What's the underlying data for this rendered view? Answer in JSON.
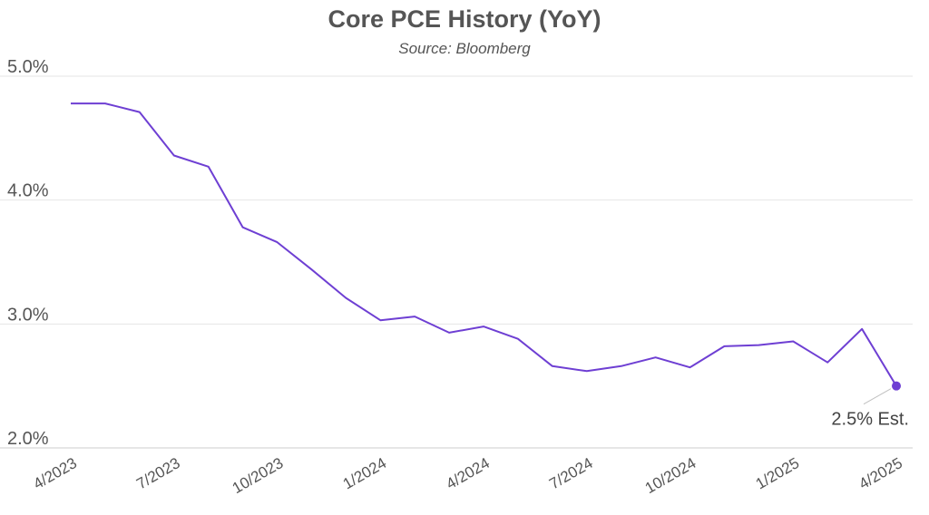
{
  "chart_data": {
    "type": "line",
    "title": "Core PCE History (YoY)",
    "subtitle": "Source: Bloomberg",
    "xlabel": "",
    "ylabel": "",
    "ylim": [
      2.0,
      5.0
    ],
    "yticks": [
      "2.0%",
      "3.0%",
      "4.0%",
      "5.0%"
    ],
    "xticks": [
      "4/2023",
      "7/2023",
      "10/2023",
      "1/2024",
      "4/2024",
      "7/2024",
      "10/2024",
      "1/2025",
      "4/2025"
    ],
    "grid": true,
    "legend": "none",
    "colors": {
      "line": "#6e3fd3",
      "grid": "#e6e6e6",
      "text": "#555555"
    },
    "x": [
      "4/2023",
      "5/2023",
      "6/2023",
      "7/2023",
      "8/2023",
      "9/2023",
      "10/2023",
      "11/2023",
      "12/2023",
      "1/2024",
      "2/2024",
      "3/2024",
      "4/2024",
      "5/2024",
      "6/2024",
      "7/2024",
      "8/2024",
      "9/2024",
      "10/2024",
      "11/2024",
      "12/2024",
      "1/2025",
      "2/2025",
      "3/2025",
      "4/2025"
    ],
    "series": [
      {
        "values": [
          4.78,
          4.78,
          4.71,
          4.36,
          4.27,
          3.78,
          3.66,
          3.44,
          3.21,
          3.03,
          3.06,
          2.93,
          2.98,
          2.88,
          2.66,
          2.62,
          2.66,
          2.73,
          2.65,
          2.82,
          2.83,
          2.86,
          2.69,
          2.96,
          2.5
        ]
      }
    ],
    "annotation": {
      "text": "2.5% Est.",
      "x": "4/2025",
      "y": 2.5
    }
  }
}
